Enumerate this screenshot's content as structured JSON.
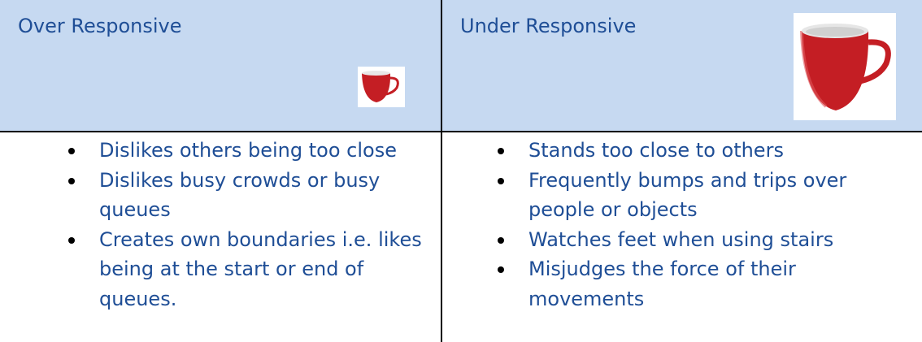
{
  "table": {
    "headers": [
      "Over Responsive",
      "Under Responsive"
    ],
    "rows": [
      [
        [
          "Dislikes others being too close",
          "Dislikes busy crowds or busy queues",
          "Creates own boundaries i.e. likes being at the start or end of queues."
        ],
        [
          "Stands too close to others",
          "Frequently bumps and trips over people or objects",
          "Watches feet when using stairs",
          "Misjudges the force of their movements"
        ]
      ]
    ]
  }
}
